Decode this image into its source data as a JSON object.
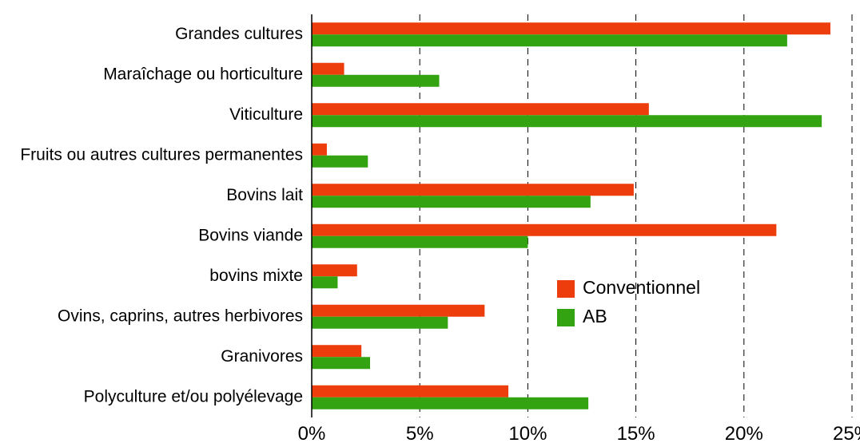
{
  "chart_data": {
    "type": "bar",
    "orientation": "horizontal",
    "categories": [
      "Grandes cultures",
      "Maraîchage ou horticulture",
      "Viticulture",
      "Fruits ou autres cultures permanentes",
      "Bovins lait",
      "Bovins viande",
      "bovins mixte",
      "Ovins, caprins, autres herbivores",
      "Granivores",
      "Polyculture et/ou  polyélevage"
    ],
    "series": [
      {
        "name": "Conventionnel",
        "color": "#ee3d0c",
        "values": [
          24.0,
          1.5,
          15.6,
          0.7,
          14.9,
          21.5,
          2.1,
          8.0,
          2.3,
          9.1
        ]
      },
      {
        "name": "AB",
        "color": "#33a312",
        "values": [
          22.0,
          5.9,
          23.6,
          2.6,
          12.9,
          10.0,
          1.2,
          6.3,
          2.7,
          12.8
        ]
      }
    ],
    "xlim": [
      0,
      25
    ],
    "ticks": [
      0,
      5,
      10,
      15,
      20,
      25
    ],
    "tick_labels": [
      "0%",
      "5%",
      "10%",
      "15%",
      "20%",
      "25%"
    ],
    "grid": "vertical dashed",
    "legend": "center-right"
  }
}
